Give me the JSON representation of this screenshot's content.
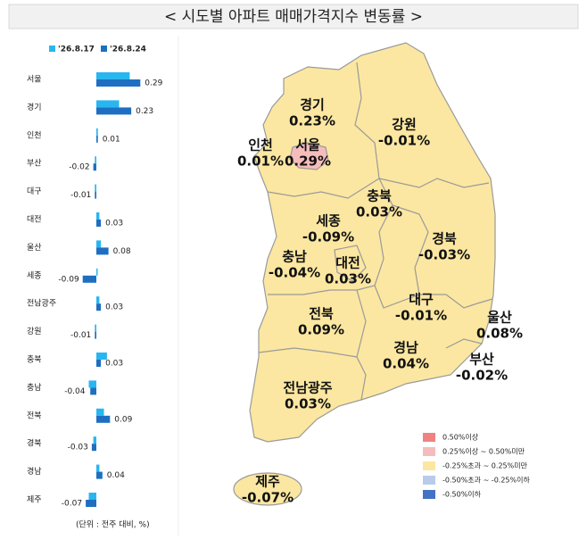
{
  "title": "< 시도별 아파트 매매가격지수 변동률 >",
  "chart_data": {
    "type": "bar",
    "orientation": "horizontal",
    "categories": [
      "서울",
      "경기",
      "인천",
      "부산",
      "대구",
      "대전",
      "울산",
      "세종",
      "전남광주",
      "강원",
      "충북",
      "충남",
      "전북",
      "경북",
      "경남",
      "제주"
    ],
    "series": [
      {
        "name": "'26.8.17",
        "color": "#29b6f0",
        "values": [
          0.22,
          0.15,
          0.01,
          -0.01,
          -0.01,
          0.02,
          0.03,
          0.0,
          0.02,
          -0.01,
          0.07,
          -0.05,
          0.05,
          -0.02,
          0.02,
          -0.05
        ]
      },
      {
        "name": "'26.8.24",
        "color": "#1e6fc1",
        "values": [
          0.29,
          0.23,
          0.01,
          -0.02,
          -0.01,
          0.03,
          0.08,
          -0.09,
          0.03,
          -0.01,
          0.03,
          -0.04,
          0.09,
          -0.03,
          0.04,
          -0.07
        ]
      }
    ],
    "xlim": [
      -0.25,
      0.35
    ],
    "footnote": "(단위 : 전주 대비, %)"
  },
  "map": {
    "regions": [
      {
        "name": "경기",
        "label": "0.23%"
      },
      {
        "name": "강원",
        "label": "-0.01%"
      },
      {
        "name": "인천",
        "label": "0.01%"
      },
      {
        "name": "서울",
        "label": "0.29%"
      },
      {
        "name": "충북",
        "label": "0.03%"
      },
      {
        "name": "세종",
        "label": "-0.09%"
      },
      {
        "name": "충남",
        "label": "-0.04%"
      },
      {
        "name": "대전",
        "label": "0.03%"
      },
      {
        "name": "경북",
        "label": "-0.03%"
      },
      {
        "name": "대구",
        "label": "-0.01%"
      },
      {
        "name": "울산",
        "label": "0.08%"
      },
      {
        "name": "전북",
        "label": "0.09%"
      },
      {
        "name": "경남",
        "label": "0.04%"
      },
      {
        "name": "부산",
        "label": "-0.02%"
      },
      {
        "name": "전남광주",
        "label": "0.03%"
      },
      {
        "name": "제주",
        "label": "-0.07%"
      }
    ],
    "legend": [
      {
        "label": "0.50%이상",
        "color": "#f08283"
      },
      {
        "label": "0.25%이상 ~ 0.50%미만",
        "color": "#f6bcbc"
      },
      {
        "label": "-0.25%초과 ~ 0.25%미만",
        "color": "#fbe7a1"
      },
      {
        "label": "-0.50%초과 ~ -0.25%이하",
        "color": "#b9cbea"
      },
      {
        "label": "-0.50%이하",
        "color": "#4472c4"
      }
    ]
  }
}
